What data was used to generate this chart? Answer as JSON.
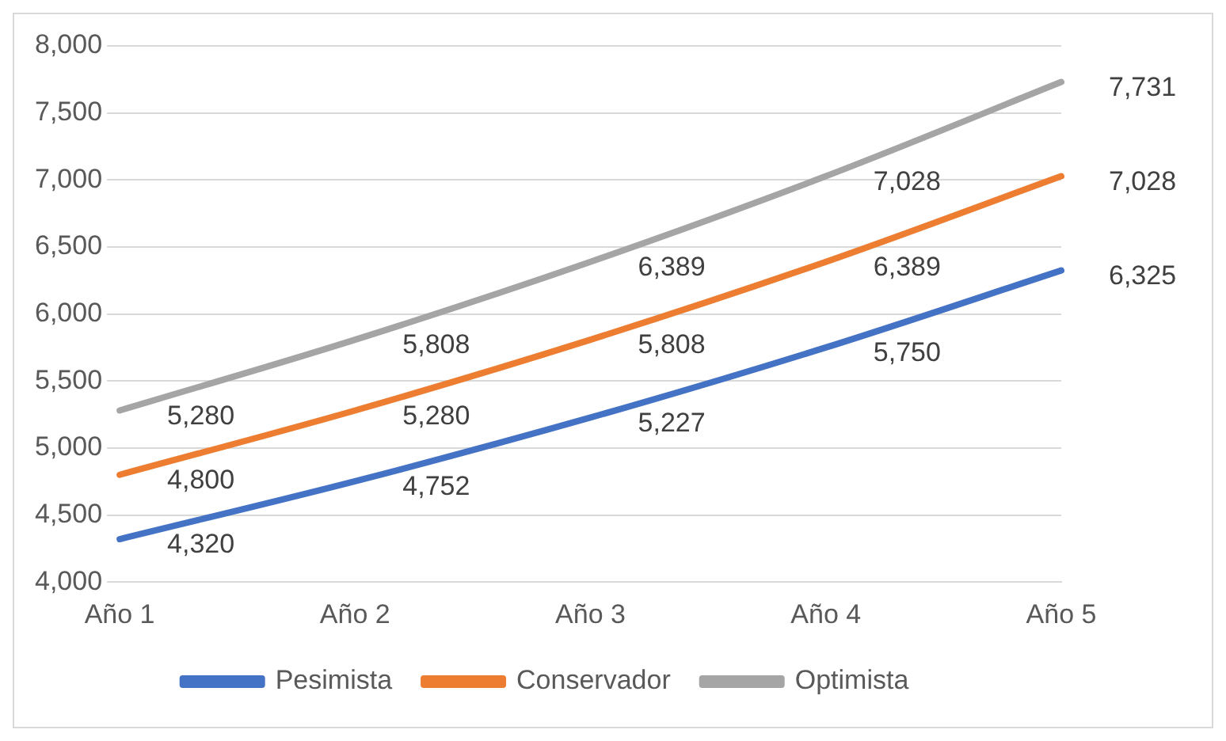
{
  "chart_data": {
    "type": "line",
    "categories": [
      "Año 1",
      "Año 2",
      "Año 3",
      "Año 4",
      "Año 5"
    ],
    "series": [
      {
        "name": "Pesimista",
        "color": "#4472c4",
        "values": [
          4320,
          4752,
          5227,
          5750,
          6325
        ],
        "value_labels": [
          "4,320",
          "4,752",
          "5,227",
          "5,750",
          "6,325"
        ]
      },
      {
        "name": "Conservador",
        "color": "#ed7d31",
        "values": [
          4800,
          5280,
          5808,
          6389,
          7028
        ],
        "value_labels": [
          "4,800",
          "5,280",
          "5,808",
          "6,389",
          "7,028"
        ]
      },
      {
        "name": "Optimista",
        "color": "#a5a5a5",
        "values": [
          5280,
          5808,
          6389,
          7028,
          7731
        ],
        "value_labels": [
          "5,280",
          "5,808",
          "6,389",
          "7,028",
          "7,731"
        ]
      }
    ],
    "ylim": [
      4000,
      8000
    ],
    "yticks": [
      {
        "value": 4000,
        "label": "4,000"
      },
      {
        "value": 4500,
        "label": "4,500"
      },
      {
        "value": 5000,
        "label": "5,000"
      },
      {
        "value": 5500,
        "label": "5,500"
      },
      {
        "value": 6000,
        "label": "6,000"
      },
      {
        "value": 6500,
        "label": "6,500"
      },
      {
        "value": 7000,
        "label": "7,000"
      },
      {
        "value": 7500,
        "label": "7,500"
      },
      {
        "value": 8000,
        "label": "8,000"
      }
    ],
    "grid": "y",
    "legend": "bottom",
    "marker": "none",
    "line_style": "solid"
  }
}
